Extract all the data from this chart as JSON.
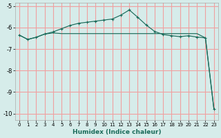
{
  "xlabel": "Humidex (Indice chaleur)",
  "bg_color": "#d6ecea",
  "grid_color": "#f0a0a0",
  "line_color": "#1a6b5a",
  "xlim": [
    -0.5,
    23.5
  ],
  "ylim": [
    -10.3,
    -4.85
  ],
  "yticks": [
    -10,
    -9,
    -8,
    -7,
    -6,
    -5
  ],
  "xticks": [
    0,
    1,
    2,
    3,
    4,
    5,
    6,
    7,
    8,
    9,
    10,
    11,
    12,
    13,
    14,
    15,
    16,
    17,
    18,
    19,
    20,
    21,
    22,
    23
  ],
  "line1_x": [
    0,
    1,
    2,
    3,
    4,
    5,
    6,
    7,
    8,
    9,
    10,
    11,
    12,
    13,
    14,
    15,
    16,
    17,
    18,
    19,
    20,
    21,
    22,
    23
  ],
  "line1_y": [
    -6.35,
    -6.55,
    -6.45,
    -6.3,
    -6.2,
    -6.05,
    -5.9,
    -5.8,
    -5.75,
    -5.7,
    -5.65,
    -5.6,
    -5.42,
    -5.18,
    -5.52,
    -5.88,
    -6.18,
    -6.32,
    -6.38,
    -6.42,
    -6.38,
    -6.44,
    -6.48,
    -9.78
  ],
  "line2_x": [
    0,
    1,
    2,
    3,
    4,
    5,
    6,
    7,
    8,
    9,
    10,
    11,
    12,
    13,
    14,
    15,
    16,
    17,
    18,
    19,
    20,
    21,
    22,
    23
  ],
  "line2_y": [
    -6.35,
    -6.55,
    -6.45,
    -6.3,
    -6.25,
    -6.28,
    -6.28,
    -6.28,
    -6.28,
    -6.28,
    -6.28,
    -6.28,
    -6.28,
    -6.28,
    -6.28,
    -6.28,
    -6.28,
    -6.28,
    -6.28,
    -6.28,
    -6.28,
    -6.28,
    -6.48,
    -9.78
  ]
}
